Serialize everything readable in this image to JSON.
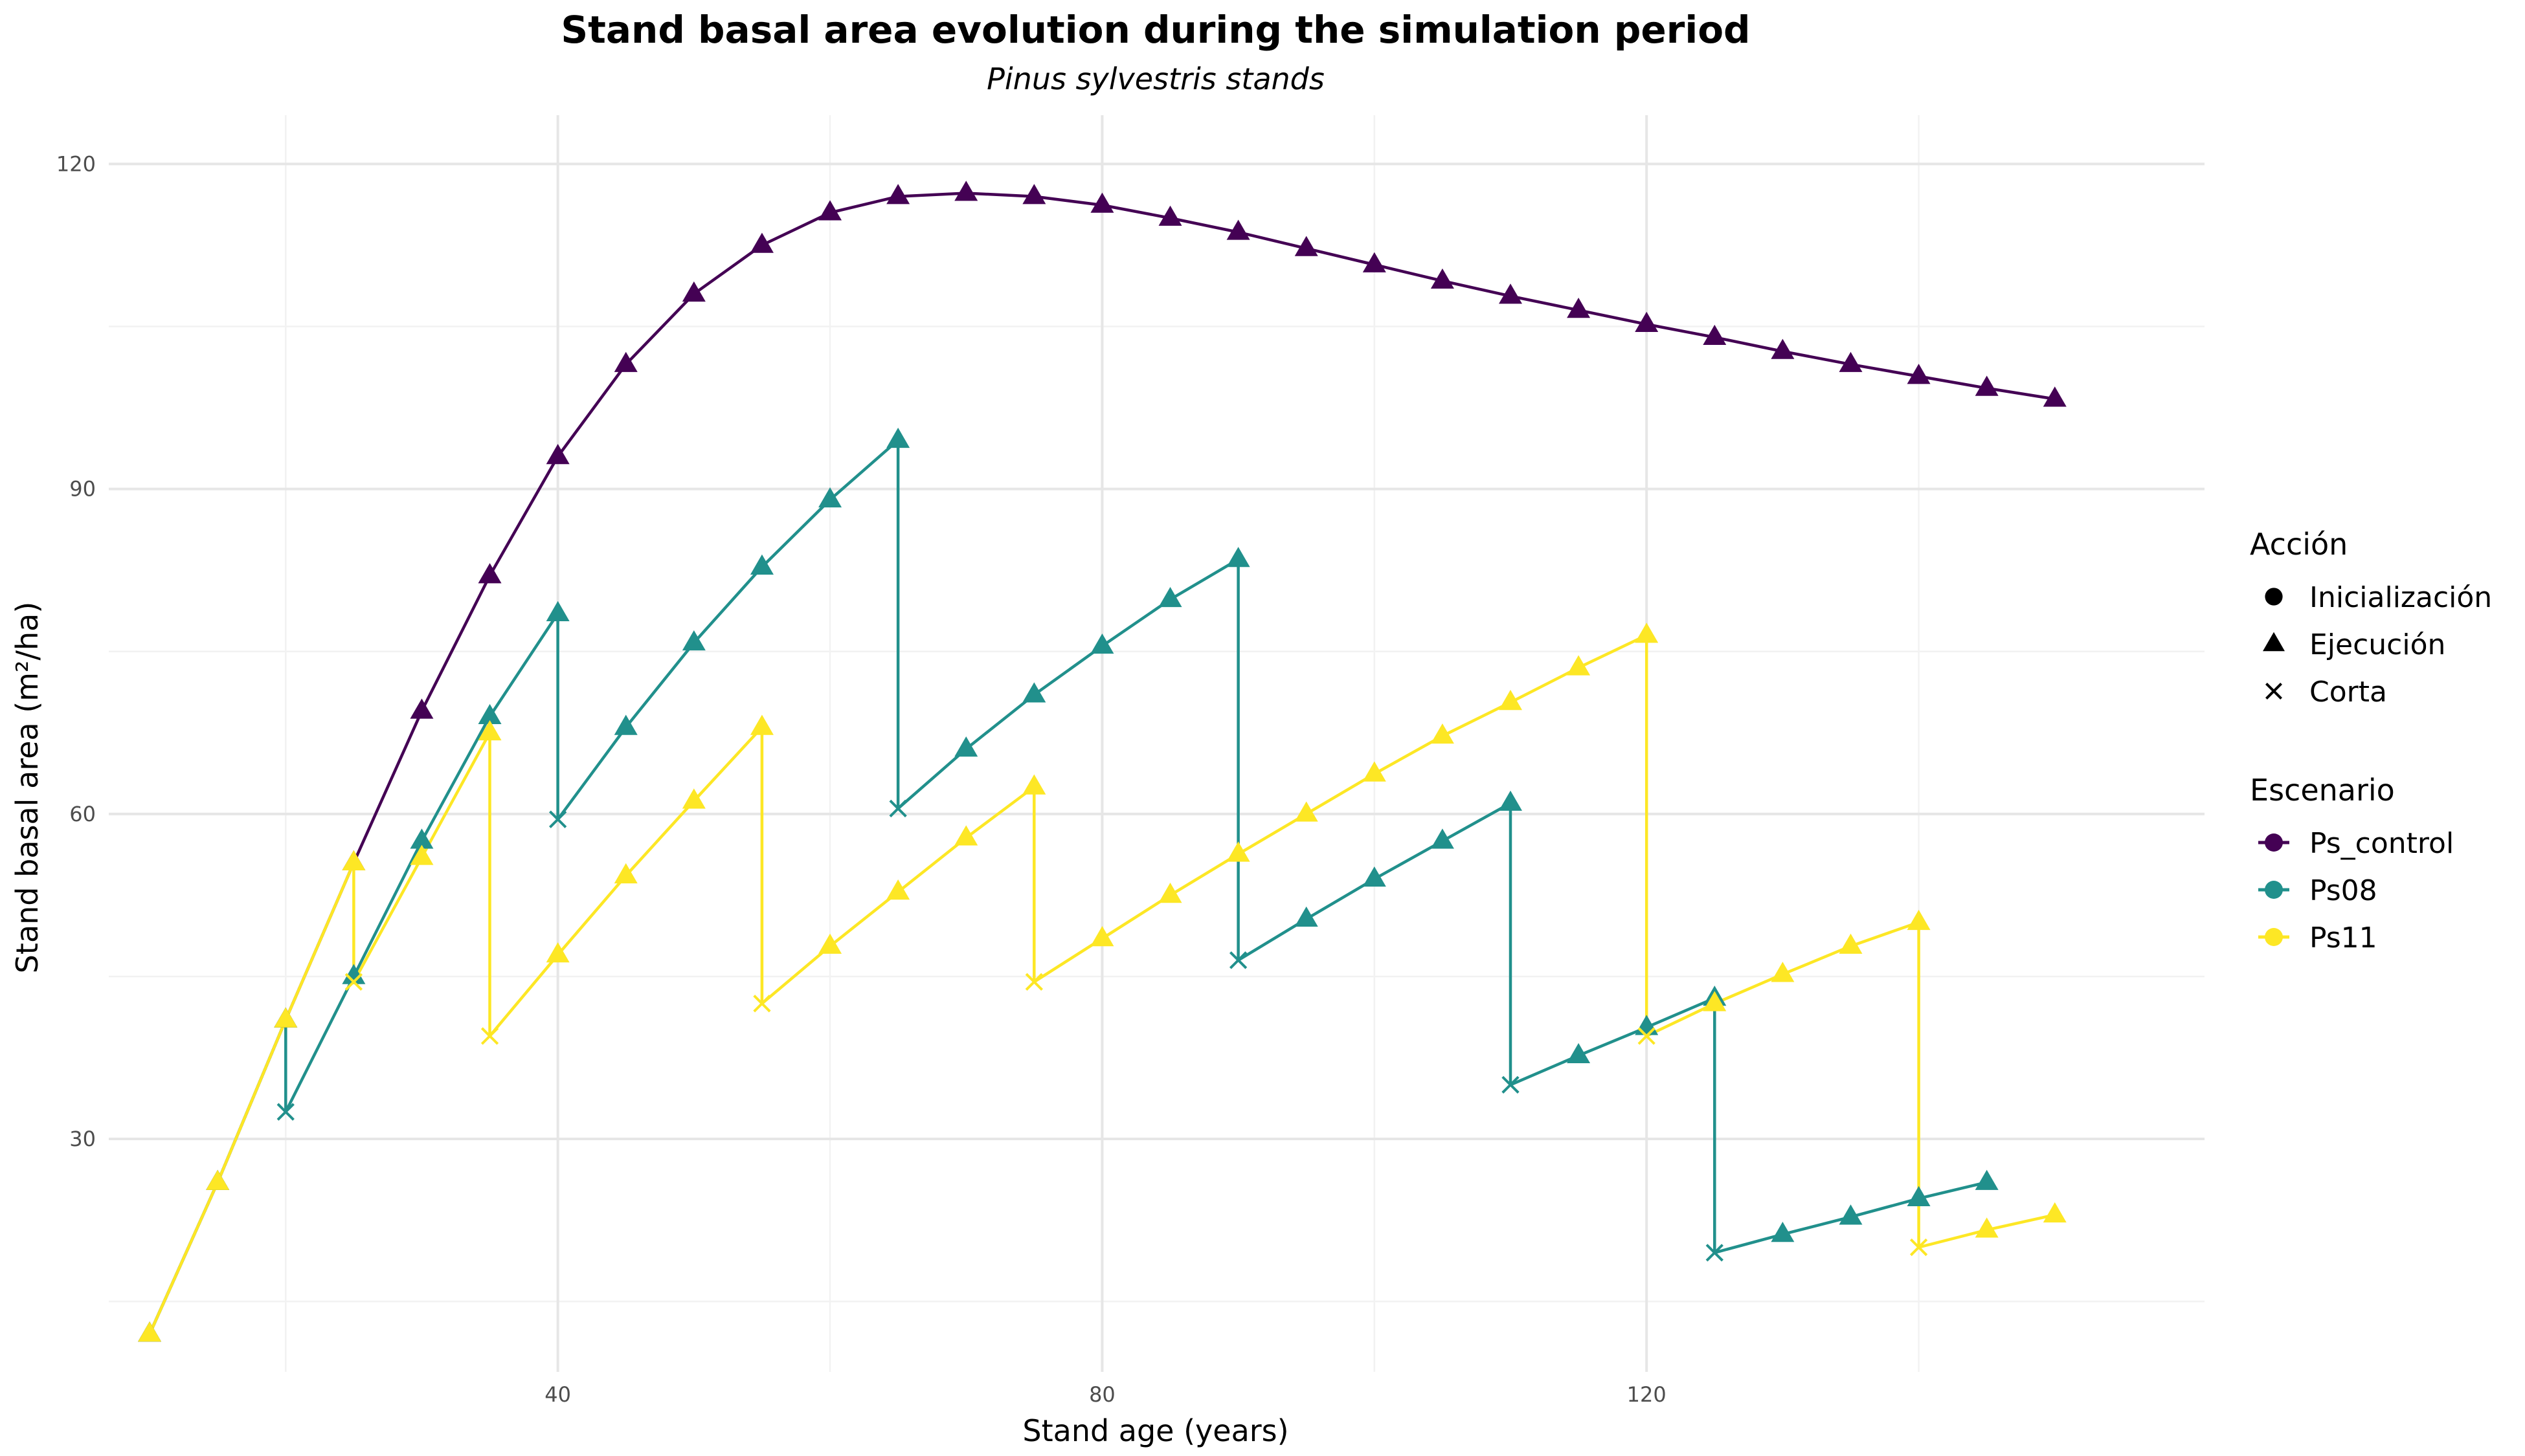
{
  "chart_data": {
    "type": "line",
    "title": "Stand basal area evolution during the simulation period",
    "subtitle": "Pinus sylvestris stands",
    "xlabel": "Stand age (years)",
    "ylabel": "Stand basal area (m²/ha)",
    "xlim": [
      7,
      161
    ],
    "ylim": [
      8.5,
      124.5
    ],
    "x_ticks": [
      40,
      80,
      120
    ],
    "x_minor": [
      20,
      60,
      100,
      140
    ],
    "y_ticks": [
      30,
      60,
      90,
      120
    ],
    "y_minor": [
      15,
      45,
      75,
      105
    ],
    "grid": true,
    "legend_position": "right",
    "legend": {
      "shape_title": "Acción",
      "shapes": [
        {
          "label": "Inicialización",
          "shape": "circle"
        },
        {
          "label": "Ejecución",
          "shape": "triangle"
        },
        {
          "label": "Corta",
          "shape": "cross"
        }
      ],
      "color_title": "Escenario"
    },
    "series": [
      {
        "name": "Ps_control",
        "color": "#440154",
        "points": [
          [
            10,
            12,
            "triangle"
          ],
          [
            15,
            26,
            "triangle"
          ],
          [
            20,
            41,
            "triangle"
          ],
          [
            25,
            55.5,
            "triangle"
          ],
          [
            30,
            69.5,
            "triangle"
          ],
          [
            35,
            82,
            "triangle"
          ],
          [
            40,
            93,
            "triangle"
          ],
          [
            45,
            101.5,
            "triangle"
          ],
          [
            50,
            108,
            "triangle"
          ],
          [
            55,
            112.5,
            "triangle"
          ],
          [
            60,
            115.5,
            "triangle"
          ],
          [
            65,
            117,
            "triangle"
          ],
          [
            70,
            117.3,
            "triangle"
          ],
          [
            75,
            117,
            "triangle"
          ],
          [
            80,
            116.2,
            "triangle"
          ],
          [
            85,
            115,
            "triangle"
          ],
          [
            90,
            113.7,
            "triangle"
          ],
          [
            95,
            112.2,
            "triangle"
          ],
          [
            100,
            110.7,
            "triangle"
          ],
          [
            105,
            109.2,
            "triangle"
          ],
          [
            110,
            107.8,
            "triangle"
          ],
          [
            115,
            106.5,
            "triangle"
          ],
          [
            120,
            105.2,
            "triangle"
          ],
          [
            125,
            104,
            "triangle"
          ],
          [
            130,
            102.7,
            "triangle"
          ],
          [
            135,
            101.5,
            "triangle"
          ],
          [
            140,
            100.4,
            "triangle"
          ],
          [
            145,
            99.3,
            "triangle"
          ],
          [
            150,
            98.3,
            "triangle"
          ]
        ]
      },
      {
        "name": "Ps08",
        "color": "#21908C",
        "points": [
          [
            10,
            12,
            "triangle"
          ],
          [
            15,
            26,
            "triangle"
          ],
          [
            20,
            41,
            "triangle"
          ],
          [
            20,
            32.5,
            "cross"
          ],
          [
            25,
            45,
            "triangle"
          ],
          [
            30,
            57.5,
            "triangle"
          ],
          [
            35,
            69,
            "triangle"
          ],
          [
            40,
            78.5,
            "triangle"
          ],
          [
            40,
            59.5,
            "cross"
          ],
          [
            45,
            68,
            "triangle"
          ],
          [
            50,
            75.8,
            "triangle"
          ],
          [
            55,
            82.8,
            "triangle"
          ],
          [
            60,
            89,
            "triangle"
          ],
          [
            65,
            94.5,
            "triangle"
          ],
          [
            65,
            60.5,
            "cross"
          ],
          [
            70,
            66,
            "triangle"
          ],
          [
            75,
            71,
            "triangle"
          ],
          [
            80,
            75.5,
            "triangle"
          ],
          [
            85,
            79.8,
            "triangle"
          ],
          [
            90,
            83.5,
            "triangle"
          ],
          [
            90,
            46.5,
            "cross"
          ],
          [
            95,
            50.3,
            "triangle"
          ],
          [
            100,
            54,
            "triangle"
          ],
          [
            105,
            57.5,
            "triangle"
          ],
          [
            110,
            61,
            "triangle"
          ],
          [
            110,
            35,
            "cross"
          ],
          [
            115,
            37.7,
            "triangle"
          ],
          [
            120,
            40.3,
            "triangle"
          ],
          [
            125,
            43,
            "triangle"
          ],
          [
            125,
            19.5,
            "cross"
          ],
          [
            130,
            21.2,
            "triangle"
          ],
          [
            135,
            22.8,
            "triangle"
          ],
          [
            140,
            24.5,
            "triangle"
          ],
          [
            145,
            26,
            "triangle"
          ]
        ]
      },
      {
        "name": "Ps11",
        "color": "#FDE725",
        "points": [
          [
            10,
            12,
            "triangle"
          ],
          [
            15,
            26,
            "triangle"
          ],
          [
            20,
            41,
            "triangle"
          ],
          [
            25,
            55.5,
            "triangle"
          ],
          [
            25,
            44.5,
            "cross"
          ],
          [
            30,
            56,
            "triangle"
          ],
          [
            35,
            67.5,
            "triangle"
          ],
          [
            35,
            39.5,
            "cross"
          ],
          [
            40,
            47,
            "triangle"
          ],
          [
            45,
            54.3,
            "triangle"
          ],
          [
            50,
            61.2,
            "triangle"
          ],
          [
            55,
            68,
            "triangle"
          ],
          [
            55,
            42.5,
            "cross"
          ],
          [
            60,
            47.8,
            "triangle"
          ],
          [
            65,
            52.8,
            "triangle"
          ],
          [
            70,
            57.8,
            "triangle"
          ],
          [
            75,
            62.5,
            "triangle"
          ],
          [
            75,
            44.5,
            "cross"
          ],
          [
            80,
            48.5,
            "triangle"
          ],
          [
            85,
            52.5,
            "triangle"
          ],
          [
            90,
            56.3,
            "triangle"
          ],
          [
            95,
            60,
            "triangle"
          ],
          [
            100,
            63.7,
            "triangle"
          ],
          [
            105,
            67.2,
            "triangle"
          ],
          [
            110,
            70.3,
            "triangle"
          ],
          [
            115,
            73.5,
            "triangle"
          ],
          [
            120,
            76.5,
            "triangle"
          ],
          [
            120,
            39.5,
            "cross"
          ],
          [
            125,
            42.5,
            "triangle"
          ],
          [
            130,
            45.2,
            "triangle"
          ],
          [
            135,
            47.8,
            "triangle"
          ],
          [
            140,
            50,
            "triangle"
          ],
          [
            140,
            20,
            "cross"
          ],
          [
            145,
            21.6,
            "triangle"
          ],
          [
            150,
            23,
            "triangle"
          ]
        ]
      }
    ]
  }
}
